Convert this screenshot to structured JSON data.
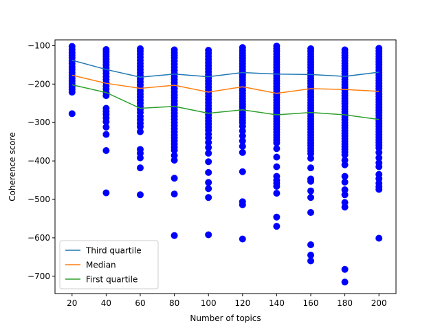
{
  "chart_data": {
    "type": "scatter",
    "xlabel": "Number of topics",
    "ylabel": "Coherence score",
    "xlim": [
      10,
      210
    ],
    "ylim": [
      -745,
      -85
    ],
    "xticks": [
      20,
      40,
      60,
      80,
      100,
      120,
      140,
      160,
      180,
      200
    ],
    "xtick_labels": [
      "20",
      "40",
      "60",
      "80",
      "100",
      "120",
      "140",
      "160",
      "180",
      "200"
    ],
    "yticks": [
      -700,
      -600,
      -500,
      -400,
      -300,
      -200,
      -100
    ],
    "ytick_labels": [
      "−700",
      "−600",
      "−500",
      "−400",
      "−300",
      "−200",
      "−100"
    ],
    "legend_position": "lower-left",
    "grid": false,
    "scatter_color": "#0000ff",
    "scatter": [
      {
        "x": 20,
        "y": [
          -102,
          -110,
          -118,
          -125,
          -132,
          -140,
          -147,
          -155,
          -162,
          -170,
          -178,
          -185,
          -192,
          -200,
          -207,
          -214,
          -221,
          -277
        ]
      },
      {
        "x": 40,
        "y": [
          -110,
          -116,
          -122,
          -128,
          -135,
          -142,
          -150,
          -158,
          -165,
          -172,
          -180,
          -188,
          -196,
          -205,
          -213,
          -222,
          -230,
          -263,
          -271,
          -279,
          -288,
          -298,
          -312,
          -331,
          -373,
          -483
        ]
      },
      {
        "x": 60,
        "y": [
          -108,
          -115,
          -122,
          -130,
          -138,
          -146,
          -154,
          -162,
          -170,
          -178,
          -186,
          -194,
          -202,
          -210,
          -218,
          -226,
          -234,
          -242,
          -250,
          -258,
          -266,
          -274,
          -284,
          -293,
          -302,
          -311,
          -324,
          -370,
          -380,
          -392,
          -418,
          -488
        ]
      },
      {
        "x": 80,
        "y": [
          -111,
          -118,
          -125,
          -132,
          -140,
          -148,
          -156,
          -164,
          -172,
          -180,
          -188,
          -196,
          -204,
          -212,
          -220,
          -228,
          -236,
          -244,
          -252,
          -260,
          -268,
          -276,
          -284,
          -292,
          -300,
          -308,
          -316,
          -324,
          -332,
          -340,
          -348,
          -356,
          -364,
          -372,
          -386,
          -398,
          -445,
          -486,
          -594
        ]
      },
      {
        "x": 100,
        "y": [
          -112,
          -120,
          -128,
          -136,
          -144,
          -152,
          -160,
          -168,
          -176,
          -184,
          -192,
          -200,
          -208,
          -216,
          -224,
          -232,
          -240,
          -248,
          -256,
          -264,
          -272,
          -280,
          -288,
          -296,
          -304,
          -312,
          -320,
          -330,
          -340,
          -352,
          -365,
          -380,
          -402,
          -430,
          -456,
          -472,
          -495,
          -592
        ]
      },
      {
        "x": 120,
        "y": [
          -105,
          -112,
          -119,
          -126,
          -133,
          -140,
          -147,
          -154,
          -161,
          -168,
          -175,
          -182,
          -189,
          -196,
          -203,
          -210,
          -217,
          -224,
          -231,
          -238,
          -245,
          -252,
          -259,
          -266,
          -273,
          -280,
          -287,
          -294,
          -301,
          -310,
          -322,
          -335,
          -348,
          -362,
          -378,
          -428,
          -506,
          -514,
          -603
        ]
      },
      {
        "x": 140,
        "y": [
          -101,
          -108,
          -115,
          -122,
          -129,
          -136,
          -143,
          -150,
          -157,
          -164,
          -171,
          -178,
          -185,
          -192,
          -199,
          -206,
          -213,
          -220,
          -227,
          -234,
          -241,
          -248,
          -255,
          -262,
          -269,
          -276,
          -283,
          -290,
          -297,
          -304,
          -311,
          -318,
          -325,
          -332,
          -339,
          -346,
          -353,
          -368,
          -390,
          -415,
          -440,
          -450,
          -458,
          -466,
          -484,
          -546,
          -570
        ]
      },
      {
        "x": 160,
        "y": [
          -108,
          -115,
          -122,
          -129,
          -136,
          -143,
          -150,
          -157,
          -164,
          -171,
          -178,
          -185,
          -192,
          -199,
          -206,
          -213,
          -220,
          -227,
          -234,
          -241,
          -248,
          -255,
          -262,
          -269,
          -276,
          -283,
          -290,
          -297,
          -304,
          -311,
          -318,
          -325,
          -332,
          -339,
          -346,
          -353,
          -360,
          -367,
          -374,
          -381,
          -393,
          -418,
          -447,
          -453,
          -478,
          -495,
          -534,
          -618,
          -645,
          -660
        ]
      },
      {
        "x": 180,
        "y": [
          -111,
          -118,
          -125,
          -132,
          -139,
          -146,
          -153,
          -160,
          -167,
          -174,
          -181,
          -188,
          -195,
          -202,
          -209,
          -216,
          -223,
          -230,
          -237,
          -244,
          -251,
          -258,
          -265,
          -272,
          -279,
          -286,
          -293,
          -300,
          -307,
          -314,
          -321,
          -328,
          -335,
          -342,
          -349,
          -356,
          -363,
          -370,
          -377,
          -384,
          -398,
          -410,
          -440,
          -455,
          -475,
          -488,
          -508,
          -520,
          -682,
          -715
        ]
      },
      {
        "x": 200,
        "y": [
          -107,
          -114,
          -121,
          -128,
          -135,
          -142,
          -149,
          -156,
          -163,
          -170,
          -177,
          -184,
          -191,
          -198,
          -205,
          -212,
          -219,
          -226,
          -233,
          -240,
          -247,
          -254,
          -261,
          -268,
          -275,
          -282,
          -289,
          -296,
          -303,
          -310,
          -317,
          -324,
          -331,
          -338,
          -345,
          -352,
          -359,
          -366,
          -378,
          -392,
          -405,
          -415,
          -435,
          -446,
          -458,
          -467,
          -474,
          -601
        ]
      }
    ],
    "series": [
      {
        "name": "Third quartile",
        "color": "#1f77b4",
        "x": [
          20,
          40,
          60,
          80,
          100,
          120,
          140,
          160,
          180,
          200
        ],
        "values": [
          -138,
          -162,
          -182,
          -174,
          -181,
          -170,
          -174,
          -175,
          -180,
          -169
        ]
      },
      {
        "name": "Median",
        "color": "#ff7f0e",
        "x": [
          20,
          40,
          60,
          80,
          100,
          120,
          140,
          160,
          180,
          200
        ],
        "values": [
          -177,
          -198,
          -211,
          -203,
          -221,
          -207,
          -224,
          -212,
          -214,
          -219
        ]
      },
      {
        "name": "First quartile",
        "color": "#2ca02c",
        "x": [
          20,
          40,
          60,
          80,
          100,
          120,
          140,
          160,
          180,
          200
        ],
        "values": [
          -202,
          -222,
          -263,
          -258,
          -276,
          -267,
          -280,
          -274,
          -280,
          -292
        ]
      }
    ]
  }
}
